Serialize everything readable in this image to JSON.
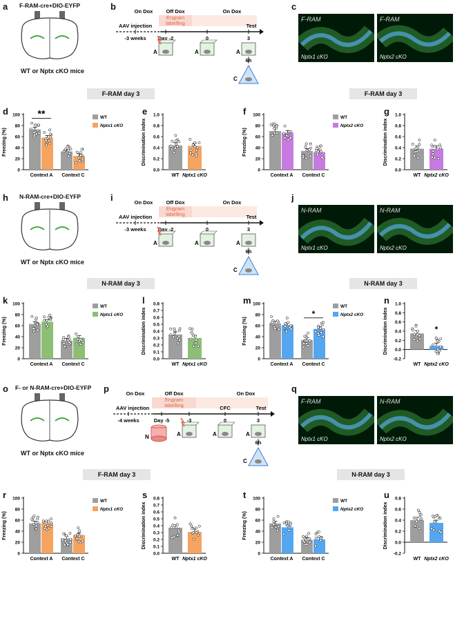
{
  "rows": [
    {
      "letters": [
        "a",
        "b",
        "c"
      ],
      "brain_title": "F-RAM-cre+DIO-EYFP",
      "brain_title_italic": "F",
      "mice": "WT or Nptx cKO mice",
      "timeline": {
        "top_labels": [
          "On Dox",
          "Off Dox",
          "On Dox"
        ],
        "engram": "Engram labelling",
        "injection": "AAV injection",
        "test": "Test",
        "ticks": [
          "-3 weeks",
          "Day -2",
          "0",
          "3"
        ],
        "ctx_labels": [
          "A",
          "A",
          "C"
        ],
        "delay": "6h"
      },
      "micro": [
        {
          "title": "F-RAM",
          "genotype": "Nptx1 cKO"
        },
        {
          "title": "F-RAM",
          "genotype": "Nptx2 cKO"
        }
      ]
    },
    {
      "letters": [
        "h",
        "i",
        "j"
      ],
      "brain_title": "N-RAM-cre+DIO-EYFP",
      "mice": "WT or Nptx cKO mice",
      "timeline": {
        "top_labels": [
          "On Dox",
          "Off Dox",
          "On Dox"
        ],
        "engram": "Engram labelling",
        "injection": "AAV injection",
        "test": "Test",
        "ticks": [
          "-3 weeks",
          "Day -2",
          "0",
          "3"
        ],
        "ctx_labels": [
          "A",
          "A",
          "C"
        ],
        "delay": "6h"
      },
      "micro": [
        {
          "title": "N-RAM",
          "genotype": "Nptx1 cKO"
        },
        {
          "title": "N-RAM",
          "genotype": "Nptx2 cKO"
        }
      ]
    },
    {
      "letters": [
        "o",
        "p",
        "q"
      ],
      "brain_title": "F- or N-RAM-cre+DIO-EYFP",
      "mice": "WT or Nptx cKO mice",
      "timeline": {
        "top_labels": [
          "On Dox",
          "Off Dox",
          "On Dox"
        ],
        "engram": "Engram labelling",
        "injection": "AAV injection",
        "test": "Test",
        "cfc": "CFC",
        "ticks": [
          "-4 weeks",
          "Day -5",
          "-3",
          "0",
          "3"
        ],
        "ctx_labels": [
          "N",
          "A",
          "A",
          "C"
        ],
        "delay": "6h"
      },
      "micro": [
        {
          "title": "F-RAM",
          "genotype": "Nptx1 cKO"
        },
        {
          "title": "N-RAM",
          "genotype": "Nptx2 cKO"
        }
      ]
    }
  ],
  "section_headers": [
    "F-RAM day 3",
    "F-RAM day 3",
    "N-RAM day 3",
    "N-RAM day 3",
    "F-RAM day 3",
    "N-RAM day 3"
  ],
  "colors": {
    "wt": "#9e9e9e",
    "nptx1_f": "#f5a35f",
    "nptx2_f": "#c77be0",
    "nptx1_n": "#8cbf74",
    "nptx2_n": "#54a6f0",
    "nptx1_r": "#f5a35f",
    "nptx2_r": "#54a6f0"
  },
  "chart_data": [
    {
      "id": "d",
      "type": "bar",
      "ylabel": "Freezing (%)",
      "ylim": [
        0,
        100
      ],
      "yticks": [
        0,
        20,
        40,
        60,
        80,
        100
      ],
      "categories": [
        "Context A",
        "Context C"
      ],
      "series": [
        {
          "name": "WT",
          "values": [
            73,
            33
          ]
        },
        {
          "name": "Nptx1 cKO",
          "values": [
            58,
            25
          ]
        }
      ],
      "annotation": "**",
      "legend": [
        "WT",
        "Nptx1 cKO"
      ]
    },
    {
      "id": "e",
      "type": "bar",
      "ylabel": "Discrimination index",
      "ylim": [
        0,
        1.0
      ],
      "yticks": [
        0.0,
        0.2,
        0.4,
        0.6,
        0.8,
        1.0
      ],
      "categories": [
        "WT",
        "Nptx1 cKO"
      ],
      "values": [
        0.44,
        0.43
      ]
    },
    {
      "id": "f",
      "type": "bar",
      "ylabel": "Freezing (%)",
      "ylim": [
        0,
        100
      ],
      "yticks": [
        0,
        20,
        40,
        60,
        80,
        100
      ],
      "categories": [
        "Context A",
        "Context C"
      ],
      "series": [
        {
          "name": "WT",
          "values": [
            70,
            34
          ]
        },
        {
          "name": "Nptx2 cKO",
          "values": [
            67,
            32
          ]
        }
      ],
      "legend": [
        "WT",
        "Nptx2 cKO"
      ]
    },
    {
      "id": "g",
      "type": "bar",
      "ylabel": "Discrimination index",
      "ylim": [
        0,
        1.0
      ],
      "yticks": [
        0.0,
        0.2,
        0.4,
        0.6,
        0.8,
        1.0
      ],
      "categories": [
        "WT",
        "Nptx2 cKO"
      ],
      "values": [
        0.38,
        0.38
      ]
    },
    {
      "id": "k",
      "type": "bar",
      "ylabel": "Freezing (%)",
      "ylim": [
        0,
        100
      ],
      "yticks": [
        0,
        20,
        40,
        60,
        80,
        100
      ],
      "categories": [
        "Context A",
        "Context C"
      ],
      "series": [
        {
          "name": "WT",
          "values": [
            63,
            33
          ]
        },
        {
          "name": "Nptx1 cKO",
          "values": [
            67,
            38
          ]
        }
      ],
      "legend": [
        "WT",
        "Nptx1 cKO"
      ]
    },
    {
      "id": "l",
      "type": "bar",
      "ylabel": "Discrimination index",
      "ylim": [
        0,
        0.8
      ],
      "yticks": [
        0.0,
        0.1,
        0.2,
        0.3,
        0.4,
        0.5,
        0.6,
        0.7,
        0.8
      ],
      "categories": [
        "WT",
        "Nptx1 cKO"
      ],
      "values": [
        0.35,
        0.3
      ]
    },
    {
      "id": "m",
      "type": "bar",
      "ylabel": "Freezing (%)",
      "ylim": [
        0,
        100
      ],
      "yticks": [
        0,
        20,
        40,
        60,
        80,
        100
      ],
      "categories": [
        "Context A",
        "Context C"
      ],
      "series": [
        {
          "name": "WT",
          "values": [
            64,
            34
          ]
        },
        {
          "name": "Nptx2 cKO",
          "values": [
            61,
            54
          ]
        }
      ],
      "annotation": "*",
      "legend": [
        "WT",
        "Nptx2 cKO"
      ]
    },
    {
      "id": "n",
      "type": "bar",
      "ylabel": "Discrimination index",
      "ylim": [
        -0.2,
        1.0
      ],
      "yticks": [
        -0.2,
        0.0,
        0.2,
        0.4,
        0.6,
        0.8,
        1.0
      ],
      "categories": [
        "WT",
        "Nptx2 cKO"
      ],
      "values": [
        0.35,
        0.08
      ],
      "annotation": "*"
    },
    {
      "id": "r",
      "type": "bar",
      "ylabel": "Freezing (%)",
      "ylim": [
        0,
        100
      ],
      "yticks": [
        0,
        20,
        40,
        60,
        80,
        100
      ],
      "categories": [
        "Context A",
        "Context C"
      ],
      "series": [
        {
          "name": "WT",
          "values": [
            54,
            27
          ]
        },
        {
          "name": "Nptx1 cKO",
          "values": [
            55,
            33
          ]
        }
      ],
      "legend": [
        "WT",
        "Nptx1 cKO"
      ]
    },
    {
      "id": "s",
      "type": "bar",
      "ylabel": "Discrimination index",
      "ylim": [
        0,
        0.8
      ],
      "yticks": [
        0.0,
        0.1,
        0.2,
        0.3,
        0.4,
        0.5,
        0.6,
        0.7,
        0.8
      ],
      "categories": [
        "WT",
        "Nptx1 cKO"
      ],
      "values": [
        0.37,
        0.31
      ]
    },
    {
      "id": "t",
      "type": "bar",
      "ylabel": "Freezing (%)",
      "ylim": [
        0,
        100
      ],
      "yticks": [
        0,
        20,
        40,
        60,
        80,
        100
      ],
      "categories": [
        "Context A",
        "Context C"
      ],
      "series": [
        {
          "name": "WT",
          "values": [
            54,
            24
          ]
        },
        {
          "name": "Nptx2 cKO",
          "values": [
            47,
            25
          ]
        }
      ],
      "legend": [
        "WT",
        "Nptx2 cKO"
      ]
    },
    {
      "id": "u",
      "type": "bar",
      "ylabel": "Discrimination index",
      "ylim": [
        -0.2,
        0.8
      ],
      "yticks": [
        -0.2,
        0.0,
        0.2,
        0.4,
        0.6,
        0.8
      ],
      "categories": [
        "WT",
        "Nptx2 cKO"
      ],
      "values": [
        0.4,
        0.35
      ]
    }
  ]
}
